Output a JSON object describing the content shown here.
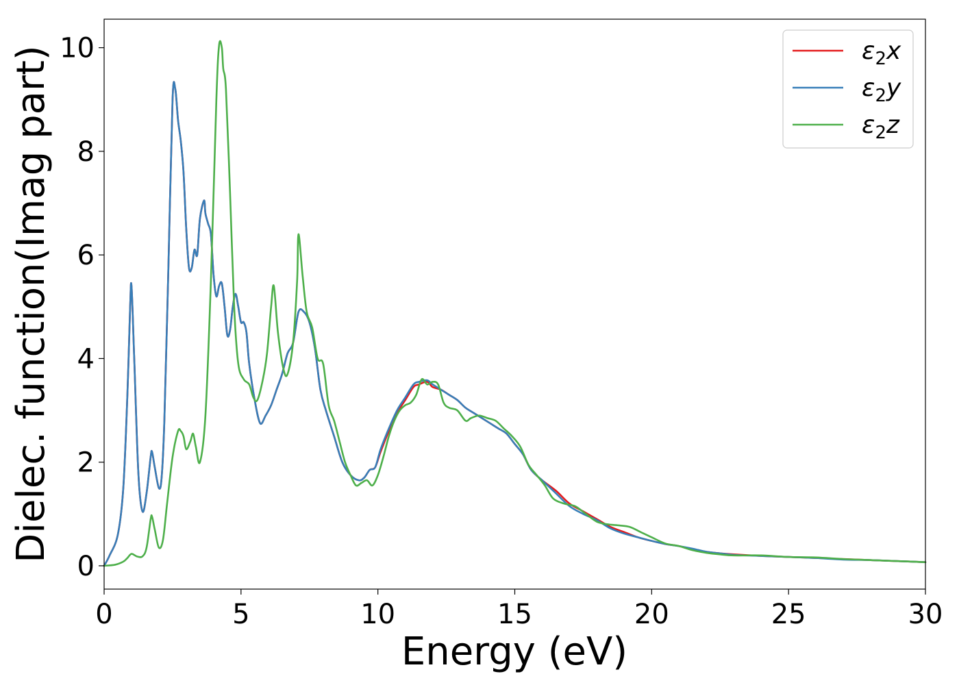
{
  "chart_data": {
    "type": "line",
    "xlabel": "Energy (eV)",
    "ylabel": "Dielec. function(Imag part)",
    "xlim": [
      0,
      30
    ],
    "ylim": [
      -0.45,
      10.55
    ],
    "xticks": [
      0,
      5,
      10,
      15,
      20,
      25,
      30
    ],
    "yticks": [
      0,
      2,
      4,
      6,
      8,
      10
    ],
    "grid": false,
    "legend_position": "upper-right",
    "series": [
      {
        "name": "ε2x",
        "name_base": "ε",
        "name_sub": "2",
        "name_suffix": "x",
        "color": "#e41a1c",
        "x": [
          0,
          0.2,
          0.5,
          0.7,
          0.85,
          0.95,
          1.0,
          1.1,
          1.25,
          1.4,
          1.55,
          1.7,
          1.75,
          1.85,
          2.0,
          2.1,
          2.2,
          2.35,
          2.5,
          2.6,
          2.7,
          2.8,
          2.9,
          3.0,
          3.1,
          3.2,
          3.3,
          3.4,
          3.5,
          3.65,
          3.7,
          3.8,
          3.9,
          4.0,
          4.1,
          4.2,
          4.3,
          4.4,
          4.5,
          4.6,
          4.7,
          4.8,
          4.9,
          5.0,
          5.1,
          5.2,
          5.3,
          5.5,
          5.7,
          5.9,
          6.1,
          6.3,
          6.5,
          6.7,
          6.9,
          7.1,
          7.3,
          7.5,
          7.7,
          7.9,
          8.1,
          8.4,
          8.7,
          9.0,
          9.3,
          9.5,
          9.7,
          9.9,
          10.1,
          10.4,
          10.7,
          11.0,
          11.3,
          11.5,
          11.8,
          12.0,
          12.3,
          12.6,
          12.9,
          13.2,
          13.5,
          13.8,
          14.1,
          14.4,
          14.7,
          15.0,
          15.3,
          15.6,
          16.0,
          16.5,
          17.0,
          17.5,
          18.0,
          18.5,
          19.0,
          19.5,
          20.0,
          20.5,
          21.0,
          21.5,
          22.0,
          22.5,
          23.0,
          24.0,
          25.0,
          26.0,
          27.0,
          28.0,
          29.0,
          30.0
        ],
        "y": [
          0,
          0.2,
          0.6,
          1.5,
          3.3,
          5.0,
          5.4,
          4.0,
          1.8,
          1.05,
          1.4,
          2.1,
          2.2,
          1.9,
          1.5,
          1.7,
          2.8,
          5.8,
          9.0,
          9.2,
          8.6,
          8.2,
          7.6,
          6.5,
          5.75,
          5.75,
          6.1,
          6.0,
          6.7,
          7.05,
          6.8,
          6.6,
          6.4,
          5.6,
          5.2,
          5.4,
          5.45,
          5.0,
          4.45,
          4.55,
          5.0,
          5.25,
          5.0,
          4.7,
          4.7,
          4.5,
          3.9,
          3.2,
          2.75,
          2.9,
          3.1,
          3.4,
          3.7,
          4.1,
          4.3,
          4.9,
          4.9,
          4.7,
          4.2,
          3.4,
          3.0,
          2.5,
          2.0,
          1.75,
          1.65,
          1.7,
          1.85,
          1.9,
          2.2,
          2.6,
          2.95,
          3.2,
          3.45,
          3.5,
          3.55,
          3.45,
          3.4,
          3.3,
          3.2,
          3.05,
          2.95,
          2.85,
          2.75,
          2.65,
          2.55,
          2.35,
          2.15,
          1.85,
          1.65,
          1.45,
          1.2,
          1.05,
          0.9,
          0.75,
          0.65,
          0.55,
          0.48,
          0.42,
          0.38,
          0.32,
          0.27,
          0.24,
          0.22,
          0.19,
          0.17,
          0.15,
          0.13,
          0.11,
          0.09,
          0.07
        ]
      },
      {
        "name": "ε2y",
        "name_base": "ε",
        "name_sub": "2",
        "name_suffix": "y",
        "color": "#377eb8",
        "x": [
          0,
          0.2,
          0.5,
          0.7,
          0.85,
          0.95,
          1.0,
          1.1,
          1.25,
          1.4,
          1.55,
          1.7,
          1.75,
          1.85,
          2.0,
          2.1,
          2.2,
          2.35,
          2.5,
          2.6,
          2.7,
          2.8,
          2.9,
          3.0,
          3.1,
          3.2,
          3.3,
          3.4,
          3.5,
          3.65,
          3.7,
          3.8,
          3.9,
          4.0,
          4.1,
          4.2,
          4.3,
          4.4,
          4.5,
          4.6,
          4.7,
          4.8,
          4.9,
          5.0,
          5.1,
          5.2,
          5.3,
          5.5,
          5.7,
          5.9,
          6.1,
          6.3,
          6.5,
          6.7,
          6.9,
          7.1,
          7.3,
          7.5,
          7.7,
          7.9,
          8.1,
          8.4,
          8.7,
          9.0,
          9.3,
          9.5,
          9.7,
          9.9,
          10.1,
          10.4,
          10.7,
          11.0,
          11.3,
          11.5,
          11.8,
          12.0,
          12.3,
          12.6,
          12.9,
          13.2,
          13.5,
          13.8,
          14.1,
          14.4,
          14.7,
          15.0,
          15.3,
          15.6,
          16.0,
          16.5,
          17.0,
          17.5,
          18.0,
          18.5,
          19.0,
          19.5,
          20.0,
          20.5,
          21.0,
          21.5,
          22.0,
          22.5,
          23.0,
          24.0,
          25.0,
          26.0,
          27.0,
          28.0,
          29.0,
          30.0
        ],
        "y": [
          0,
          0.2,
          0.6,
          1.5,
          3.3,
          5.0,
          5.4,
          4.0,
          1.8,
          1.05,
          1.4,
          2.1,
          2.2,
          1.9,
          1.5,
          1.7,
          2.8,
          5.8,
          9.0,
          9.2,
          8.6,
          8.2,
          7.6,
          6.5,
          5.75,
          5.75,
          6.1,
          6.0,
          6.7,
          7.05,
          6.8,
          6.6,
          6.4,
          5.6,
          5.2,
          5.4,
          5.45,
          5.0,
          4.45,
          4.55,
          5.0,
          5.25,
          5.0,
          4.7,
          4.7,
          4.5,
          3.9,
          3.2,
          2.75,
          2.9,
          3.1,
          3.4,
          3.7,
          4.1,
          4.3,
          4.9,
          4.9,
          4.7,
          4.2,
          3.4,
          3.0,
          2.5,
          2.0,
          1.75,
          1.65,
          1.7,
          1.85,
          1.9,
          2.25,
          2.65,
          3.0,
          3.25,
          3.5,
          3.55,
          3.58,
          3.5,
          3.4,
          3.3,
          3.2,
          3.05,
          2.95,
          2.85,
          2.75,
          2.65,
          2.55,
          2.35,
          2.15,
          1.85,
          1.65,
          1.4,
          1.15,
          1.0,
          0.88,
          0.72,
          0.62,
          0.55,
          0.48,
          0.42,
          0.38,
          0.33,
          0.27,
          0.24,
          0.21,
          0.19,
          0.17,
          0.15,
          0.12,
          0.11,
          0.09,
          0.07
        ]
      },
      {
        "name": "ε2z",
        "name_base": "ε",
        "name_sub": "2",
        "name_suffix": "z",
        "color": "#4daf4a",
        "x": [
          0,
          0.4,
          0.7,
          0.85,
          1.0,
          1.2,
          1.4,
          1.55,
          1.7,
          1.75,
          1.85,
          2.0,
          2.15,
          2.3,
          2.5,
          2.7,
          2.8,
          2.9,
          3.0,
          3.15,
          3.25,
          3.35,
          3.5,
          3.7,
          3.9,
          4.1,
          4.2,
          4.3,
          4.35,
          4.45,
          4.6,
          4.75,
          4.9,
          5.1,
          5.3,
          5.45,
          5.6,
          5.8,
          5.95,
          6.1,
          6.2,
          6.35,
          6.55,
          6.7,
          6.9,
          7.05,
          7.1,
          7.25,
          7.4,
          7.6,
          7.8,
          8.0,
          8.2,
          8.4,
          8.6,
          8.8,
          9.0,
          9.2,
          9.4,
          9.6,
          9.8,
          10.0,
          10.2,
          10.4,
          10.6,
          10.8,
          11.0,
          11.2,
          11.4,
          11.6,
          11.8,
          12.0,
          12.2,
          12.4,
          12.6,
          12.9,
          13.2,
          13.4,
          13.7,
          14.0,
          14.3,
          14.6,
          14.9,
          15.2,
          15.5,
          15.8,
          16.1,
          16.4,
          16.8,
          17.2,
          17.6,
          18.0,
          18.4,
          18.8,
          19.2,
          19.6,
          20.0,
          20.5,
          21.0,
          21.5,
          22.0,
          22.5,
          23.0,
          24.0,
          25.0,
          26.0,
          27.0,
          28.0,
          29.0,
          30.0
        ],
        "y": [
          0,
          0.02,
          0.08,
          0.15,
          0.23,
          0.18,
          0.18,
          0.35,
          0.9,
          0.95,
          0.7,
          0.35,
          0.5,
          1.2,
          2.1,
          2.6,
          2.6,
          2.5,
          2.25,
          2.4,
          2.55,
          2.3,
          2.0,
          2.9,
          5.5,
          9.0,
          10.05,
          10.0,
          9.6,
          9.2,
          7.2,
          5.0,
          3.9,
          3.6,
          3.5,
          3.25,
          3.2,
          3.6,
          4.1,
          5.0,
          5.4,
          4.5,
          3.8,
          3.7,
          4.3,
          5.5,
          6.4,
          5.6,
          4.9,
          4.6,
          4.0,
          3.9,
          3.1,
          2.8,
          2.4,
          2.0,
          1.75,
          1.55,
          1.6,
          1.65,
          1.55,
          1.75,
          2.1,
          2.5,
          2.8,
          3.0,
          3.1,
          3.15,
          3.3,
          3.6,
          3.5,
          3.55,
          3.5,
          3.15,
          3.05,
          3.0,
          2.8,
          2.85,
          2.9,
          2.85,
          2.8,
          2.65,
          2.5,
          2.3,
          1.95,
          1.75,
          1.55,
          1.3,
          1.2,
          1.15,
          1.0,
          0.85,
          0.8,
          0.78,
          0.75,
          0.65,
          0.55,
          0.43,
          0.38,
          0.3,
          0.25,
          0.22,
          0.2,
          0.2,
          0.17,
          0.16,
          0.13,
          0.11,
          0.09,
          0.07
        ]
      }
    ]
  }
}
